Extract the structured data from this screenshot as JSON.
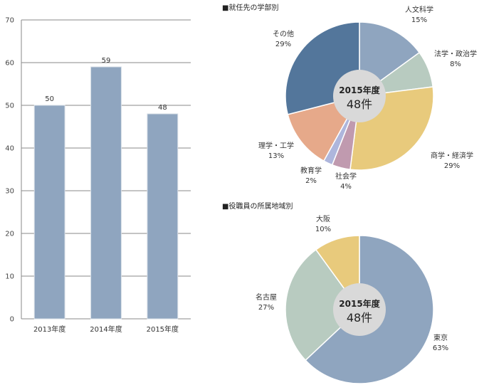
{
  "chart_data": [
    {
      "type": "bar",
      "categories": [
        "2013年度",
        "2014年度",
        "2015年度"
      ],
      "values": [
        50,
        59,
        48
      ],
      "ylim": [
        0,
        70
      ],
      "yticks": [
        0,
        10,
        20,
        30,
        40,
        50,
        60,
        70
      ],
      "grid": true,
      "color": "#8fa5bf"
    },
    {
      "type": "pie",
      "title": "■就任先の学部別",
      "center": {
        "title": "2015年度",
        "count": "48件"
      },
      "slices": [
        {
          "label": "人文科学",
          "pct": "15%",
          "value": 15,
          "color": "#8fa5bf"
        },
        {
          "label": "法学・政治学",
          "pct": "8%",
          "value": 8,
          "color": "#b8cbc0"
        },
        {
          "label": "商学・経済学",
          "pct": "29%",
          "value": 29,
          "color": "#e8ca7c"
        },
        {
          "label": "社会学",
          "pct": "4%",
          "value": 4,
          "color": "#c09aaf"
        },
        {
          "label": "教育学",
          "pct": "2%",
          "value": 2,
          "color": "#aeb6dc"
        },
        {
          "label": "理学・工学",
          "pct": "13%",
          "value": 13,
          "color": "#e6a98a"
        },
        {
          "label": "その他",
          "pct": "29%",
          "value": 29,
          "color": "#53769b"
        }
      ]
    },
    {
      "type": "pie",
      "title": "■役職員の所属地域別",
      "center": {
        "title": "2015年度",
        "count": "48件"
      },
      "slices": [
        {
          "label": "東京",
          "pct": "63%",
          "value": 63,
          "color": "#8fa5bf"
        },
        {
          "label": "名古屋",
          "pct": "27%",
          "value": 27,
          "color": "#b8cbc0"
        },
        {
          "label": "大阪",
          "pct": "10%",
          "value": 10,
          "color": "#e8ca7c"
        }
      ]
    }
  ]
}
